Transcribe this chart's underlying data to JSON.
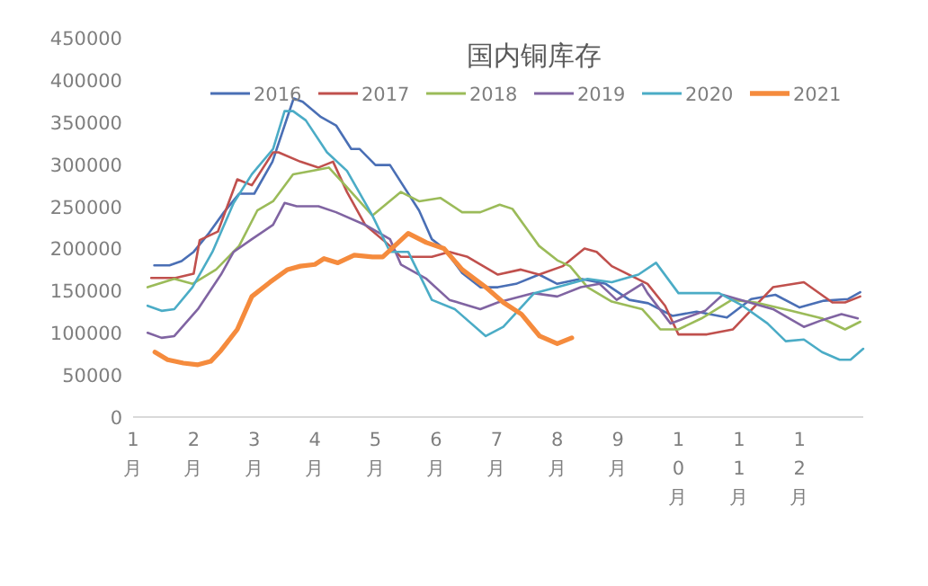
{
  "chart_data": {
    "type": "line",
    "title": "国内铜库存",
    "legend": "top",
    "grid": false,
    "line_style": "solid",
    "marker": "none",
    "xlim": [
      1,
      13.05
    ],
    "xticks": [
      {
        "value": 1,
        "label": "1月"
      },
      {
        "value": 2,
        "label": "2月"
      },
      {
        "value": 3,
        "label": "3月"
      },
      {
        "value": 4,
        "label": "4月"
      },
      {
        "value": 5,
        "label": "5月"
      },
      {
        "value": 6,
        "label": "6月"
      },
      {
        "value": 7,
        "label": "7月"
      },
      {
        "value": 8,
        "label": "8月"
      },
      {
        "value": 9,
        "label": "9月"
      },
      {
        "value": 10,
        "label": "10月"
      },
      {
        "value": 11,
        "label": "11月"
      },
      {
        "value": 12,
        "label": "12月"
      }
    ],
    "ylim": [
      0,
      450000
    ],
    "yticks": [
      0,
      50000,
      100000,
      150000,
      200000,
      250000,
      300000,
      350000,
      400000,
      450000
    ],
    "series": [
      {
        "name": "2016",
        "color": "#4a6fb5",
        "x": [
          1.35,
          1.6,
          1.8,
          2.0,
          2.25,
          2.5,
          2.75,
          3.0,
          3.3,
          3.65,
          3.8,
          4.1,
          4.35,
          4.6,
          4.74,
          5.0,
          5.24,
          5.72,
          5.93,
          6.13,
          6.43,
          6.73,
          7.02,
          7.32,
          7.7,
          8.0,
          8.39,
          8.8,
          9.19,
          9.5,
          9.9,
          10.3,
          10.8,
          11.2,
          11.6,
          12.0,
          12.4,
          12.8,
          13.0
        ],
        "values": [
          180000,
          180000,
          185000,
          196000,
          218000,
          243000,
          265000,
          265000,
          303000,
          378000,
          374000,
          356000,
          346000,
          318000,
          318000,
          299000,
          299000,
          245000,
          211000,
          200000,
          171000,
          154000,
          154000,
          158000,
          169000,
          158000,
          164000,
          158000,
          139000,
          135000,
          120000,
          125000,
          118000,
          140000,
          145000,
          130000,
          138000,
          140000,
          148000
        ]
      },
      {
        "name": "2017",
        "color": "#c0504d",
        "x": [
          1.3,
          1.7,
          2.0,
          2.1,
          2.4,
          2.72,
          2.96,
          3.31,
          3.4,
          3.76,
          4.06,
          4.3,
          4.53,
          4.83,
          5.24,
          5.42,
          5.93,
          6.22,
          6.52,
          7.02,
          7.4,
          7.7,
          8.09,
          8.45,
          8.65,
          8.9,
          9.49,
          9.78,
          10.0,
          10.47,
          10.9,
          11.56,
          12.07,
          12.54,
          12.75,
          13.0
        ],
        "values": [
          165000,
          165000,
          170000,
          210000,
          220000,
          282000,
          275000,
          314000,
          314000,
          303000,
          296000,
          303000,
          267000,
          228000,
          203000,
          190000,
          190000,
          196000,
          190000,
          169000,
          175000,
          169000,
          179000,
          200000,
          196000,
          179000,
          158000,
          132000,
          98000,
          98000,
          104000,
          154000,
          160000,
          136000,
          136000,
          143000
        ]
      },
      {
        "name": "2018",
        "color": "#9bbb59",
        "x": [
          1.24,
          1.68,
          1.98,
          2.37,
          2.75,
          3.05,
          3.31,
          3.64,
          3.94,
          4.23,
          4.5,
          4.95,
          5.42,
          5.72,
          6.07,
          6.43,
          6.73,
          7.05,
          7.26,
          7.7,
          8.0,
          8.21,
          8.5,
          8.9,
          9.4,
          9.7,
          10.0,
          10.38,
          10.88,
          11.27,
          11.86,
          12.37,
          12.75,
          13.0
        ],
        "values": [
          154000,
          164000,
          158000,
          175000,
          203000,
          245000,
          256000,
          288000,
          292000,
          296000,
          275000,
          239000,
          267000,
          256000,
          260000,
          243000,
          243000,
          252000,
          247000,
          203000,
          186000,
          179000,
          154000,
          137000,
          128000,
          104000,
          104000,
          117000,
          139000,
          136000,
          126000,
          117000,
          104000,
          113000
        ]
      },
      {
        "name": "2019",
        "color": "#8064a2",
        "x": [
          1.24,
          1.47,
          1.68,
          2.07,
          2.45,
          2.66,
          2.96,
          3.31,
          3.5,
          3.7,
          4.06,
          4.35,
          4.83,
          5.24,
          5.42,
          5.84,
          6.22,
          6.73,
          7.02,
          7.6,
          8.0,
          8.39,
          8.7,
          8.98,
          9.4,
          9.49,
          9.87,
          10.44,
          10.73,
          11.56,
          12.07,
          12.37,
          12.69,
          12.96
        ],
        "values": [
          100000,
          94000,
          96000,
          128000,
          169000,
          196000,
          211000,
          228000,
          254000,
          250000,
          250000,
          243000,
          228000,
          211000,
          181000,
          164000,
          139000,
          128000,
          136000,
          147000,
          143000,
          154000,
          158000,
          139000,
          158000,
          147000,
          111000,
          126000,
          145000,
          128000,
          107000,
          115000,
          122000,
          117000
        ]
      },
      {
        "name": "2020",
        "color": "#4bacc6",
        "x": [
          1.24,
          1.47,
          1.68,
          1.98,
          2.31,
          2.66,
          2.96,
          3.31,
          3.5,
          3.64,
          3.85,
          4.2,
          4.53,
          4.95,
          5.24,
          5.54,
          5.93,
          6.31,
          6.82,
          7.11,
          7.62,
          8.0,
          8.5,
          8.9,
          9.34,
          9.63,
          10.0,
          10.67,
          11.06,
          11.47,
          11.77,
          12.07,
          12.37,
          12.66,
          12.84,
          13.05
        ],
        "values": [
          132000,
          126000,
          128000,
          154000,
          196000,
          254000,
          288000,
          318000,
          363000,
          363000,
          352000,
          314000,
          292000,
          239000,
          196000,
          196000,
          139000,
          128000,
          96000,
          107000,
          147000,
          154000,
          164000,
          160000,
          169000,
          183000,
          147000,
          147000,
          132000,
          111000,
          90000,
          92000,
          77000,
          68000,
          68000,
          81000
        ]
      },
      {
        "name": "2021",
        "color": "#f58b3d",
        "x": [
          1.36,
          1.57,
          1.83,
          2.07,
          2.28,
          2.45,
          2.72,
          2.96,
          3.26,
          3.55,
          3.76,
          4.0,
          4.15,
          4.38,
          4.65,
          4.95,
          5.12,
          5.54,
          5.84,
          6.13,
          6.43,
          6.82,
          7.11,
          7.41,
          7.71,
          8.0,
          8.24
        ],
        "values": [
          77000,
          68000,
          64000,
          62000,
          66000,
          79000,
          104000,
          143000,
          160000,
          175000,
          179000,
          181000,
          188000,
          183000,
          192000,
          190000,
          190000,
          218000,
          207000,
          200000,
          175000,
          154000,
          136000,
          122000,
          96000,
          87000,
          94000
        ]
      }
    ]
  }
}
